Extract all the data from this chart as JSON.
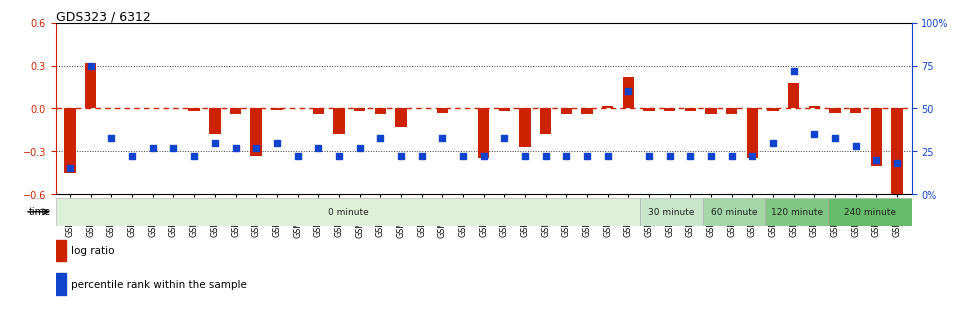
{
  "title": "GDS323 / 6312",
  "samples": [
    "GSM5811",
    "GSM5812",
    "GSM5813",
    "GSM5814",
    "GSM5815",
    "GSM5816",
    "GSM5817",
    "GSM5818",
    "GSM5819",
    "GSM5820",
    "GSM5821",
    "GSM5822",
    "GSM5823",
    "GSM5824",
    "GSM5825",
    "GSM5826",
    "GSM5827",
    "GSM5828",
    "GSM5829",
    "GSM5830",
    "GSM5831",
    "GSM5832",
    "GSM5833",
    "GSM5834",
    "GSM5835",
    "GSM5836",
    "GSM5837",
    "GSM5838",
    "GSM5839",
    "GSM5840",
    "GSM5841",
    "GSM5842",
    "GSM5843",
    "GSM5844",
    "GSM5845",
    "GSM5846",
    "GSM5847",
    "GSM5848",
    "GSM5849",
    "GSM5850",
    "GSM5851"
  ],
  "log_ratio": [
    -0.45,
    0.32,
    0.0,
    0.0,
    0.0,
    0.0,
    -0.02,
    -0.18,
    -0.04,
    -0.33,
    -0.01,
    0.0,
    -0.04,
    -0.18,
    -0.02,
    -0.04,
    -0.13,
    0.0,
    -0.03,
    0.0,
    -0.35,
    -0.02,
    -0.27,
    -0.18,
    -0.04,
    -0.04,
    0.02,
    0.22,
    -0.02,
    -0.02,
    -0.02,
    -0.04,
    -0.04,
    -0.35,
    -0.02,
    0.18,
    0.02,
    -0.03,
    -0.03,
    -0.4,
    -0.6
  ],
  "percentile_rank": [
    15,
    75,
    33,
    22,
    27,
    27,
    22,
    30,
    27,
    27,
    30,
    22,
    27,
    22,
    27,
    33,
    22,
    22,
    33,
    22,
    22,
    33,
    22,
    22,
    22,
    22,
    22,
    60,
    22,
    22,
    22,
    22,
    22,
    22,
    30,
    72,
    35,
    33,
    28,
    20,
    18
  ],
  "time_groups": [
    {
      "label": "0 minute",
      "start": 0,
      "end": 28,
      "color": "#dff0d8"
    },
    {
      "label": "30 minute",
      "start": 28,
      "end": 31,
      "color": "#c8e6c9"
    },
    {
      "label": "60 minute",
      "start": 31,
      "end": 34,
      "color": "#a5d6a7"
    },
    {
      "label": "120 minute",
      "start": 34,
      "end": 37,
      "color": "#81c784"
    },
    {
      "label": "240 minute",
      "start": 37,
      "end": 41,
      "color": "#66bb6a"
    }
  ],
  "bar_color": "#cc2200",
  "dot_color": "#1144cc",
  "dashed_color": "#cc2200",
  "ylim_left": [
    -0.6,
    0.6
  ],
  "ylim_right": [
    0,
    100
  ],
  "yticks_left": [
    -0.6,
    -0.3,
    0.0,
    0.3,
    0.6
  ],
  "yticks_right": [
    0,
    25,
    50,
    75,
    100
  ],
  "ytick_labels_right": [
    "0%",
    "25",
    "50",
    "75",
    "100%"
  ],
  "dotted_lines": [
    -0.3,
    0.3
  ],
  "background_color": "#ffffff",
  "plot_bg": "#ffffff"
}
